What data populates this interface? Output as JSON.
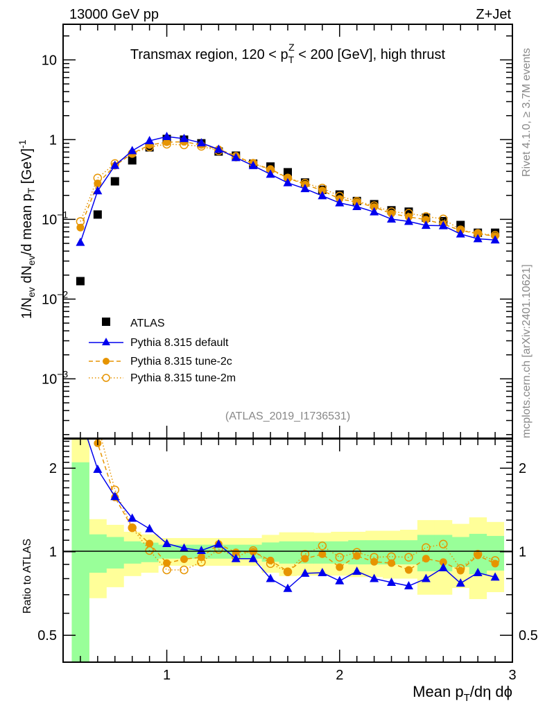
{
  "header": {
    "left": "13000 GeV pp",
    "right": "Z+Jet"
  },
  "side": {
    "rivet": "Rivet 4.1.0, ≥ 3.7M events",
    "mcplots": "mcplots.cern.ch [arXiv:2401.10621]"
  },
  "chart_data": [
    {
      "type": "scatter",
      "title": "Transmax region, 120 < pT^Z < 200 [GeV], high thrust",
      "title_parts": {
        "a": "Transmax region, 120 < p",
        "sub": "T",
        "sup": "Z",
        "b": " < 200 [GeV], high thrust"
      },
      "ylabel": "1/N_ev dN_ev/d mean p_T [GeV]^-1",
      "ylabel_parts": {
        "a": "1/N",
        "ev1": "ev",
        "b": " dN",
        "ev2": "ev",
        "c": "/d mean p",
        "T": "T",
        "d": " [GeV]",
        "e": "-1"
      },
      "yscale": "log",
      "ylim": [
        0.00018,
        28
      ],
      "xlim": [
        0.4,
        3
      ],
      "yticks": [
        {
          "v": 10,
          "base": "10",
          "exp": ""
        },
        {
          "v": 1,
          "base": "1",
          "exp": ""
        },
        {
          "v": 0.1,
          "base": "10",
          "exp": "−1"
        },
        {
          "v": 0.01,
          "base": "10",
          "exp": "−2"
        },
        {
          "v": 0.001,
          "base": "10",
          "exp": "−3"
        }
      ],
      "x": [
        0.5,
        0.6,
        0.7,
        0.8,
        0.9,
        1.0,
        1.1,
        1.2,
        1.3,
        1.4,
        1.5,
        1.6,
        1.7,
        1.8,
        1.9,
        2.0,
        2.1,
        2.2,
        2.3,
        2.4,
        2.5,
        2.6,
        2.7,
        2.8,
        2.9
      ],
      "atlas": [
        0.0168,
        0.115,
        0.3,
        0.55,
        0.8,
        1.02,
        1.0,
        0.9,
        0.71,
        0.63,
        0.5,
        0.46,
        0.39,
        0.29,
        0.235,
        0.205,
        0.17,
        0.155,
        0.13,
        0.125,
        0.105,
        0.095,
        0.085,
        0.068,
        0.068
      ],
      "legend": {
        "placement": "bottom-left",
        "entries": [
          "ATLAS",
          "Pythia 8.315 default",
          "Pythia 8.315 tune-2c",
          "Pythia 8.315 tune-2m"
        ]
      },
      "annotation": "(ATLAS_2019_I1736531)"
    },
    {
      "type": "line",
      "ylabel": "Ratio to ATLAS",
      "xlabel": "Mean pT/dη dφ",
      "xlabel_parts": {
        "a": "Mean p",
        "T": "T",
        "b": "/dη dϕ"
      },
      "yscale": "log",
      "ylim": [
        0.4,
        2.55
      ],
      "yticks": [
        "2",
        "1",
        "0.5"
      ],
      "xticks": [
        "1",
        "2",
        "3"
      ],
      "series": [
        {
          "name": "Pythia 8.315 default",
          "color": "#0000ee",
          "marker": "triangle",
          "style": "solid",
          "ratio": [
            3.06,
            1.98,
            1.58,
            1.32,
            1.21,
            1.07,
            1.03,
            1.01,
            1.065,
            0.944,
            0.944,
            0.8,
            0.737,
            0.836,
            0.84,
            0.785,
            0.85,
            0.8,
            0.775,
            0.753,
            0.8,
            0.875,
            0.77,
            0.84,
            0.81
          ]
        },
        {
          "name": "Pythia 8.315 tune-2c",
          "color": "#e69400",
          "marker": "filled-circle",
          "style": "dashed",
          "ratio": [
            4.7,
            2.46,
            1.57,
            1.22,
            1.07,
            0.91,
            0.94,
            0.955,
            1.065,
            0.995,
            1.0,
            0.93,
            0.85,
            0.944,
            0.98,
            0.88,
            0.966,
            0.92,
            0.91,
            0.86,
            0.944,
            0.917,
            0.855,
            0.97,
            0.906
          ]
        },
        {
          "name": "Pythia 8.315 tune-2m",
          "color": "#e69400",
          "marker": "open-circle",
          "style": "dotted",
          "ratio": [
            5.6,
            2.87,
            1.67,
            1.22,
            1.01,
            0.86,
            0.86,
            0.917,
            1.02,
            0.96,
            1.01,
            0.906,
            0.846,
            0.98,
            1.05,
            0.955,
            0.995,
            0.955,
            0.96,
            0.955,
            1.035,
            1.065,
            0.87,
            0.98,
            0.93
          ]
        }
      ],
      "band_inner": {
        "color": "#99ff99",
        "hi": [
          2.1,
          1.155,
          1.13,
          1.09,
          1.078,
          1.06,
          1.06,
          1.06,
          1.06,
          1.06,
          1.06,
          1.08,
          1.09,
          1.09,
          1.09,
          1.09,
          1.1,
          1.1,
          1.1,
          1.1,
          1.15,
          1.15,
          1.13,
          1.16,
          1.14
        ],
        "lo": [
          0.3,
          0.84,
          0.87,
          0.906,
          0.917,
          0.944,
          0.944,
          0.944,
          0.944,
          0.944,
          0.944,
          0.92,
          0.906,
          0.906,
          0.906,
          0.906,
          0.9,
          0.9,
          0.9,
          0.9,
          0.85,
          0.85,
          0.88,
          0.83,
          0.855
        ]
      },
      "band_outer": {
        "color": "#ffff99",
        "hi": [
          3,
          1.31,
          1.25,
          1.18,
          1.155,
          1.12,
          1.12,
          1.12,
          1.12,
          1.12,
          1.12,
          1.15,
          1.175,
          1.175,
          1.17,
          1.18,
          1.18,
          1.19,
          1.19,
          1.2,
          1.3,
          1.3,
          1.26,
          1.33,
          1.28
        ],
        "lo": [
          0.3,
          0.68,
          0.745,
          0.817,
          0.84,
          0.89,
          0.89,
          0.89,
          0.89,
          0.89,
          0.89,
          0.84,
          0.817,
          0.82,
          0.82,
          0.82,
          0.81,
          0.81,
          0.8,
          0.8,
          0.7,
          0.7,
          0.74,
          0.675,
          0.715
        ]
      }
    }
  ]
}
